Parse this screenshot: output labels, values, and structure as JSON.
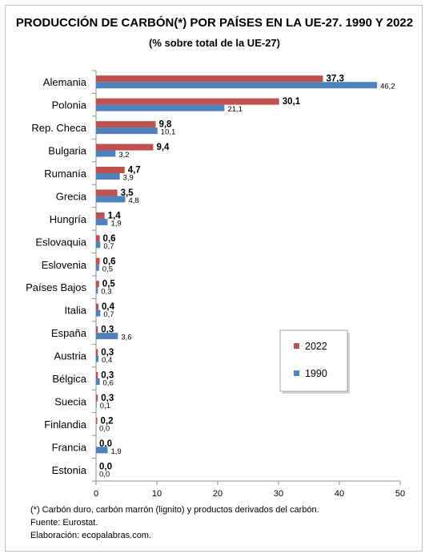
{
  "chart_data": {
    "type": "bar",
    "orientation": "horizontal",
    "title": "PRODUCCIÓN DE CARBÓN(*) POR PAÍSES EN LA UE-27. 1990 Y 2022",
    "subtitle": "(% sobre total de la UE-27)",
    "categories": [
      "Alemania",
      "Polonia",
      "Rep. Checa",
      "Bulgaria",
      "Rumanía",
      "Grecia",
      "Hungría",
      "Eslovaquia",
      "Eslovenia",
      "Países Bajos",
      "Italia",
      "España",
      "Austria",
      "Bélgica",
      "Suecia",
      "Finlandia",
      "Francia",
      "Estonia"
    ],
    "series": [
      {
        "name": "2022",
        "color": "#c0504d",
        "values": [
          37.3,
          30.1,
          9.8,
          9.4,
          4.7,
          3.5,
          1.4,
          0.6,
          0.6,
          0.5,
          0.4,
          0.3,
          0.3,
          0.3,
          0.3,
          0.2,
          0.0,
          0.0
        ],
        "labels": [
          "37,3",
          "30,1",
          "9,8",
          "9,4",
          "4,7",
          "3,5",
          "1,4",
          "0,6",
          "0,6",
          "0,5",
          "0,4",
          "0,3",
          "0,3",
          "0,3",
          "0,3",
          "0,2",
          "0,0",
          "0,0"
        ]
      },
      {
        "name": "1990",
        "color": "#4f81bd",
        "values": [
          46.2,
          21.1,
          10.1,
          3.2,
          3.9,
          4.8,
          1.9,
          0.7,
          0.5,
          0.3,
          0.7,
          3.6,
          0.4,
          0.6,
          0.1,
          0.0,
          1.9,
          0.0
        ],
        "labels": [
          "46,2",
          "21,1",
          "10,1",
          "3,2",
          "3,9",
          "4,8",
          "1,9",
          "0,7",
          "0,5",
          "0,3",
          "0,7",
          "3,6",
          "0,4",
          "0,6",
          "0,1",
          "0,0",
          "1,9",
          "0,0"
        ]
      }
    ],
    "xlim": [
      0,
      50
    ],
    "xticks": [
      0,
      10,
      20,
      30,
      40,
      50
    ],
    "xtick_labels": [
      "0",
      "10",
      "20",
      "30",
      "40",
      "50"
    ],
    "grid": false,
    "legend_position": "right-lower",
    "legend_order": [
      "2022",
      "1990"
    ]
  },
  "notes": [
    "(*) Carbón duro, carbón marrón (lignito) y productos derivados del carbón.",
    "Fuente: Eurostat.",
    "Elaboración: ecopalabras.com."
  ]
}
